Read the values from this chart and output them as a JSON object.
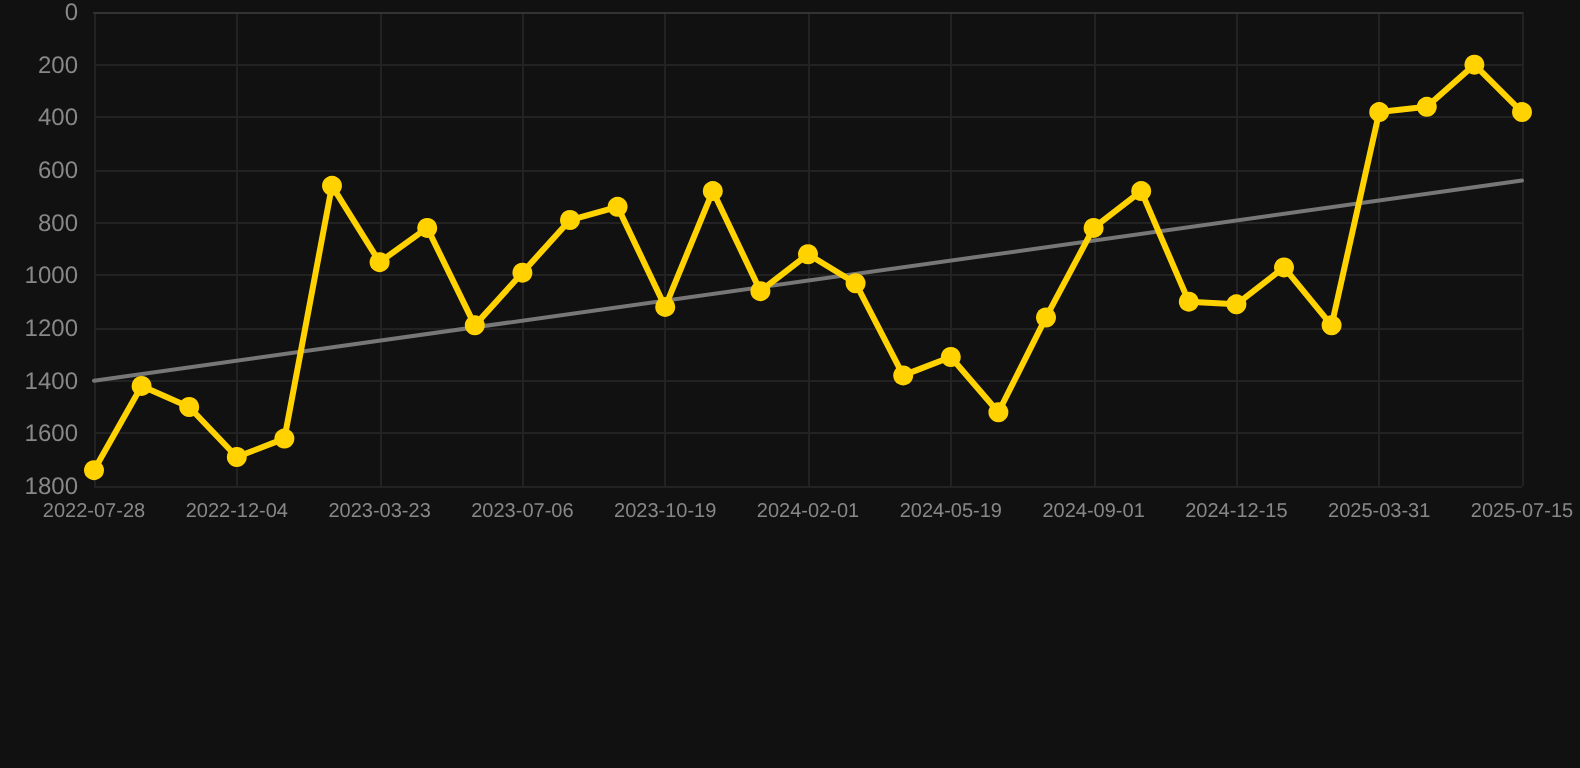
{
  "chart_data": {
    "type": "line",
    "categories": [
      "2022-07-28",
      null,
      null,
      "2022-12-04",
      null,
      null,
      "2023-03-23",
      null,
      null,
      "2023-07-06",
      null,
      null,
      "2023-10-19",
      null,
      null,
      "2024-02-01",
      null,
      null,
      "2024-05-19",
      null,
      null,
      "2024-09-01",
      null,
      null,
      "2024-12-15",
      null,
      null,
      "2025-03-31",
      null,
      null,
      "2025-07-15"
    ],
    "series": [
      {
        "color": "#ffd200",
        "values": [
          1740,
          1420,
          1500,
          1690,
          1620,
          660,
          950,
          820,
          1190,
          990,
          790,
          740,
          1120,
          680,
          1060,
          920,
          1030,
          1380,
          1310,
          1520,
          1160,
          820,
          680,
          1100,
          1110,
          970,
          1190,
          380,
          360,
          200,
          380
        ]
      },
      {
        "color": "#777777",
        "values": [
          1400,
          null,
          null,
          null,
          null,
          null,
          null,
          null,
          null,
          null,
          null,
          null,
          null,
          null,
          null,
          null,
          null,
          null,
          null,
          null,
          null,
          null,
          null,
          null,
          null,
          null,
          null,
          null,
          null,
          null,
          640
        ],
        "marker": "none"
      }
    ],
    "ylim": [
      1800,
      0
    ],
    "yticks": [
      0,
      200,
      400,
      600,
      800,
      1000,
      1200,
      1400,
      1600,
      1800
    ],
    "grid": true,
    "marker": "circle",
    "line_style": "solid"
  }
}
